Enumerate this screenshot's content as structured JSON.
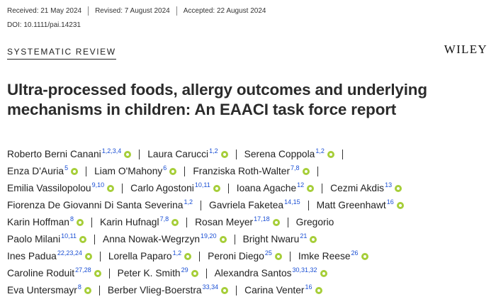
{
  "header": {
    "received": "Received: 21 May 2024",
    "revised": "Revised: 7 August 2024",
    "accepted": "Accepted: 22 August 2024",
    "doi": "DOI: 10.1111/pai.14231"
  },
  "section_label": "SYSTEMATIC REVIEW",
  "publisher": "WILEY",
  "title": "Ultra-processed foods, allergy outcomes and underlying mechanisms in children: An EAACI task force report",
  "author_lines": [
    [
      {
        "name": "Roberto Berni Canani",
        "sup": "1,2,3,4",
        "orcid": true
      },
      {
        "name": "Laura Carucci",
        "sup": "1,2",
        "orcid": true
      },
      {
        "name": "Serena Coppola",
        "sup": "1,2",
        "orcid": true,
        "trail": true
      }
    ],
    [
      {
        "name": "Enza D'Auria",
        "sup": "5",
        "orcid": true
      },
      {
        "name": "Liam O'Mahony",
        "sup": "6",
        "orcid": true
      },
      {
        "name": "Franziska Roth-Walter",
        "sup": "7,8",
        "orcid": true,
        "trail": true
      }
    ],
    [
      {
        "name": "Emilia Vassilopolou",
        "sup": "9,10",
        "orcid": true
      },
      {
        "name": "Carlo Agostoni",
        "sup": "10,11",
        "orcid": true
      },
      {
        "name": "Ioana Agache",
        "sup": "12",
        "orcid": true
      },
      {
        "name": "Cezmi Akdis",
        "sup": "13",
        "orcid": true
      }
    ],
    [
      {
        "name": "Fiorenza De Giovanni Di Santa Severina",
        "sup": "1,2",
        "orcid": false
      },
      {
        "name": "Gavriela Faketea",
        "sup": "14,15",
        "orcid": false
      },
      {
        "name": "Matt Greenhawt",
        "sup": "16",
        "orcid": true
      }
    ],
    [
      {
        "name": "Karin Hoffman",
        "sup": "8",
        "orcid": true
      },
      {
        "name": "Karin Hufnagl",
        "sup": "7,8",
        "orcid": true
      },
      {
        "name": "Rosan Meyer",
        "sup": "17,18",
        "orcid": true
      },
      {
        "name": "Gregorio",
        "sup": "",
        "orcid": false
      }
    ],
    [
      {
        "name": "Paolo Milani",
        "sup": "10,11",
        "orcid": true
      },
      {
        "name": "Anna Nowak-Wegrzyn",
        "sup": "19,20",
        "orcid": true
      },
      {
        "name": "Bright Nwaru",
        "sup": "21",
        "orcid": true
      }
    ],
    [
      {
        "name": "Ines Padua",
        "sup": "22,23,24",
        "orcid": true
      },
      {
        "name": "Lorella Paparo",
        "sup": "1,2",
        "orcid": true
      },
      {
        "name": "Peroni Diego",
        "sup": "25",
        "orcid": true
      },
      {
        "name": "Imke Reese",
        "sup": "26",
        "orcid": true
      }
    ],
    [
      {
        "name": "Caroline Roduit",
        "sup": "27,28",
        "orcid": true
      },
      {
        "name": "Peter K. Smith",
        "sup": "29",
        "orcid": true
      },
      {
        "name": "Alexandra Santos",
        "sup": "30,31,32",
        "orcid": true
      }
    ],
    [
      {
        "name": "Eva Untersmayr",
        "sup": "8",
        "orcid": true
      },
      {
        "name": "Berber Vlieg-Boerstra",
        "sup": "33,34",
        "orcid": true
      },
      {
        "name": "Carina Venter",
        "sup": "16",
        "orcid": true
      }
    ]
  ],
  "colors": {
    "orcid": "#a6ce39",
    "affiliation_link": "#1a4fd4"
  }
}
